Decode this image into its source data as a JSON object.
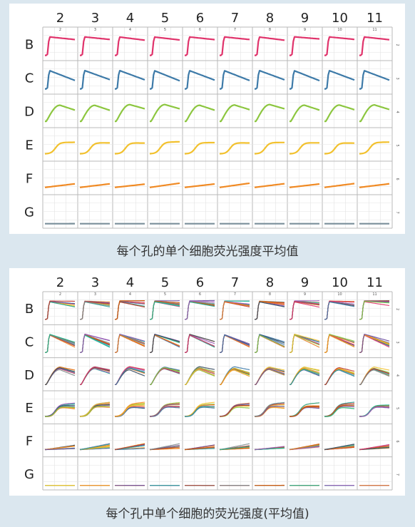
{
  "panels": [
    {
      "columns": [
        "2",
        "3",
        "4",
        "5",
        "6",
        "7",
        "8",
        "9",
        "10",
        "11"
      ],
      "rows": [
        "B",
        "C",
        "D",
        "E",
        "F",
        "G"
      ],
      "row_side_labels": [
        "2",
        "3",
        "4",
        "5",
        "6",
        "7"
      ],
      "row_colors": [
        "#e0336b",
        "#3d7aa8",
        "#8cc63f",
        "#f2c12e",
        "#f08a24",
        "#7a8f9a"
      ],
      "curve_shapes": [
        "sharp",
        "sharp_decay",
        "rise_peak",
        "sigmoid",
        "slow",
        "flat"
      ],
      "multi": false
    },
    {
      "columns": [
        "2",
        "3",
        "4",
        "5",
        "6",
        "7",
        "8",
        "9",
        "10",
        "11"
      ],
      "rows": [
        "B",
        "C",
        "D",
        "E",
        "F",
        "G"
      ],
      "row_side_labels": [
        "2",
        "3",
        "4",
        "5",
        "6",
        "7"
      ],
      "row_colors": [
        "#e0336b",
        "#3d7aa8",
        "#8cc63f",
        "#f2c12e",
        "#f08a24",
        "#7a8f9a"
      ],
      "curve_shapes": [
        "sharp",
        "sharp_decay",
        "rise_peak",
        "sigmoid",
        "slow",
        "flat"
      ],
      "multi": true,
      "multi_palette": [
        "#e0336b",
        "#3d7aa8",
        "#8cc63f",
        "#f2c12e",
        "#f08a24",
        "#6c4a9e",
        "#2aa59a",
        "#c0392b",
        "#7f8c8d",
        "#d35400",
        "#1abc9c",
        "#9b59b6",
        "#e67e22",
        "#34495e"
      ]
    }
  ],
  "captions": {
    "top": "每个孔的单个细胞荧光强度平均值",
    "bottom": "每个孔中单个细胞的荧光强度(平均值)"
  }
}
